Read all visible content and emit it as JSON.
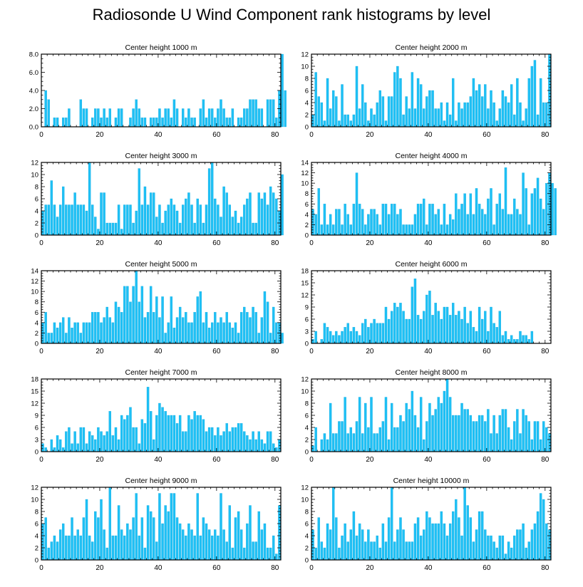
{
  "title": "Radiosonde U Wind Component rank histograms by level",
  "colors": {
    "bar": "#1ec0f5",
    "bar_edge": "#0aa7dd",
    "axis": "#000000"
  },
  "chart_data": [
    {
      "type": "bar",
      "title": "Center height 1000 m",
      "xlim": [
        0,
        82
      ],
      "xticks": [
        0,
        20,
        40,
        60,
        80
      ],
      "ylim": [
        0,
        8
      ],
      "yticks": [
        0,
        2,
        4,
        6,
        8
      ],
      "ytick_labels": [
        "0.0",
        "2.0",
        "4.0",
        "6.0",
        "8.0"
      ],
      "values": [
        0,
        4,
        3,
        0,
        1,
        1,
        0,
        1,
        1,
        2,
        0,
        0,
        0,
        3,
        2,
        2,
        0,
        1,
        2,
        2,
        1,
        2,
        1,
        2,
        0,
        1,
        2,
        2,
        0,
        0,
        1,
        2,
        3,
        2,
        1,
        1,
        0,
        1,
        1,
        1,
        2,
        1,
        2,
        2,
        1,
        3,
        2,
        0,
        2,
        1,
        2,
        1,
        1,
        0,
        2,
        3,
        1,
        2,
        2,
        1,
        2,
        3,
        2,
        1,
        1,
        2,
        0,
        1,
        1,
        2,
        2,
        3,
        3,
        3,
        2,
        2,
        0,
        3,
        3,
        3,
        1,
        4,
        8,
        4
      ]
    },
    {
      "type": "bar",
      "title": "Center height 2000 m",
      "xlim": [
        0,
        82
      ],
      "xticks": [
        0,
        20,
        40,
        60,
        80
      ],
      "ylim": [
        0,
        12
      ],
      "yticks": [
        0,
        2,
        4,
        6,
        8,
        10,
        12
      ],
      "ytick_labels": [
        "0",
        "2",
        "4",
        "6",
        "8",
        "10",
        "12"
      ],
      "values": [
        2,
        9,
        5,
        4,
        1,
        8,
        3,
        6,
        5,
        1,
        7,
        2,
        2,
        1,
        2,
        10,
        3,
        7,
        4,
        1,
        3,
        2,
        4,
        6,
        5,
        1,
        5,
        5,
        9,
        10,
        8,
        2,
        5,
        3,
        9,
        3,
        8,
        7,
        3,
        5,
        6,
        6,
        3,
        3,
        4,
        1,
        4,
        2,
        8,
        1,
        4,
        3,
        4,
        4,
        5,
        8,
        6,
        7,
        5,
        7,
        3,
        6,
        4,
        1,
        3,
        6,
        5,
        4,
        7,
        2,
        8,
        4,
        1,
        3,
        8,
        10,
        11,
        2,
        8,
        4,
        4,
        12
      ]
    },
    {
      "type": "bar",
      "title": "Center height 3000 m",
      "xlim": [
        0,
        82
      ],
      "xticks": [
        0,
        20,
        40,
        60,
        80
      ],
      "ylim": [
        0,
        12
      ],
      "yticks": [
        0,
        2,
        4,
        6,
        8,
        10,
        12
      ],
      "ytick_labels": [
        "0",
        "2",
        "4",
        "6",
        "8",
        "10",
        "12"
      ],
      "values": [
        4,
        5,
        5,
        9,
        5,
        3,
        5,
        8,
        5,
        5,
        5,
        7,
        5,
        5,
        5,
        4,
        12,
        5,
        3,
        1,
        7,
        7,
        2,
        2,
        2,
        2,
        5,
        1,
        5,
        5,
        5,
        2,
        4,
        11,
        5,
        8,
        5,
        7,
        7,
        3,
        5,
        2,
        4,
        5,
        6,
        5,
        4,
        2,
        5,
        6,
        7,
        5,
        2,
        6,
        5,
        2,
        5,
        11,
        12,
        6,
        5,
        3,
        8,
        7,
        5,
        3,
        4,
        2,
        3,
        5,
        6,
        7,
        2,
        2,
        7,
        6,
        7,
        5,
        8,
        7,
        6,
        4,
        10
      ]
    },
    {
      "type": "bar",
      "title": "Center height 4000 m",
      "xlim": [
        0,
        82
      ],
      "xticks": [
        0,
        20,
        40,
        60,
        80
      ],
      "ylim": [
        0,
        14
      ],
      "yticks": [
        0,
        2,
        4,
        6,
        8,
        10,
        12,
        14
      ],
      "ytick_labels": [
        "0",
        "2",
        "4",
        "6",
        "8",
        "10",
        "12",
        "14"
      ],
      "values": [
        5,
        4,
        9,
        2,
        6,
        2,
        4,
        2,
        5,
        5,
        2,
        6,
        4,
        2,
        6,
        12,
        6,
        5,
        2,
        4,
        5,
        5,
        4,
        2,
        6,
        6,
        4,
        6,
        6,
        4,
        5,
        2,
        2,
        2,
        2,
        4,
        6,
        6,
        7,
        2,
        6,
        6,
        4,
        5,
        2,
        6,
        2,
        4,
        3,
        8,
        5,
        6,
        8,
        4,
        8,
        4,
        9,
        6,
        5,
        4,
        7,
        9,
        2,
        6,
        8,
        5,
        13,
        4,
        4,
        7,
        5,
        4,
        12,
        9,
        2,
        8,
        9,
        11,
        7,
        5,
        10,
        12,
        10,
        9
      ]
    },
    {
      "type": "bar",
      "title": "Center height 5000 m",
      "xlim": [
        0,
        82
      ],
      "xticks": [
        0,
        20,
        40,
        60,
        80
      ],
      "ylim": [
        0,
        14
      ],
      "yticks": [
        0,
        2,
        4,
        6,
        8,
        10,
        12,
        14
      ],
      "ytick_labels": [
        "0",
        "2",
        "4",
        "6",
        "8",
        "10",
        "12",
        "14"
      ],
      "values": [
        4,
        6,
        2,
        2,
        4,
        3,
        4,
        5,
        2,
        5,
        3,
        4,
        4,
        2,
        4,
        4,
        4,
        6,
        6,
        6,
        4,
        5,
        7,
        5,
        4,
        8,
        7,
        6,
        11,
        11,
        8,
        11,
        14,
        8,
        11,
        5,
        6,
        11,
        6,
        9,
        5,
        9,
        2,
        4,
        9,
        3,
        5,
        7,
        5,
        6,
        4,
        4,
        6,
        9,
        10,
        4,
        6,
        3,
        4,
        6,
        4,
        5,
        4,
        6,
        4,
        3,
        4,
        2,
        6,
        7,
        6,
        5,
        7,
        6,
        2,
        5,
        10,
        8,
        2,
        7,
        4,
        4,
        2
      ]
    },
    {
      "type": "bar",
      "title": "Center height 6000 m",
      "xlim": [
        0,
        82
      ],
      "xticks": [
        0,
        20,
        40,
        60,
        80
      ],
      "ylim": [
        0,
        18
      ],
      "yticks": [
        0,
        3,
        6,
        9,
        12,
        15,
        18
      ],
      "ytick_labels": [
        "0",
        "3",
        "6",
        "9",
        "12",
        "15",
        "18"
      ],
      "values": [
        1,
        3,
        0,
        1,
        5,
        4,
        3,
        2,
        3,
        2,
        3,
        4,
        5,
        3,
        4,
        3,
        2,
        5,
        6,
        4,
        5,
        6,
        5,
        5,
        5,
        9,
        6,
        8,
        10,
        9,
        10,
        8,
        6,
        6,
        14,
        16,
        7,
        6,
        8,
        12,
        13,
        7,
        10,
        8,
        6,
        9,
        9,
        7,
        10,
        7,
        8,
        6,
        9,
        5,
        8,
        4,
        3,
        9,
        6,
        8,
        3,
        9,
        5,
        4,
        8,
        2,
        3,
        1,
        2,
        1,
        1,
        3,
        2,
        2,
        1,
        3
      ]
    },
    {
      "type": "bar",
      "title": "Center height 7000 m",
      "xlim": [
        0,
        82
      ],
      "xticks": [
        0,
        20,
        40,
        60,
        80
      ],
      "ylim": [
        0,
        18
      ],
      "yticks": [
        0,
        3,
        6,
        9,
        12,
        15,
        18
      ],
      "ytick_labels": [
        "0",
        "3",
        "6",
        "9",
        "12",
        "15",
        "18"
      ],
      "values": [
        2,
        1,
        0,
        3,
        1,
        4,
        3,
        1,
        5,
        6,
        2,
        5,
        2,
        6,
        6,
        2,
        5,
        4,
        3,
        6,
        5,
        4,
        5,
        10,
        4,
        6,
        3,
        9,
        8,
        9,
        11,
        6,
        6,
        2,
        8,
        7,
        16,
        10,
        3,
        9,
        12,
        11,
        10,
        9,
        9,
        9,
        7,
        9,
        5,
        5,
        9,
        8,
        10,
        9,
        9,
        8,
        5,
        6,
        6,
        4,
        6,
        4,
        5,
        7,
        5,
        6,
        6,
        7,
        7,
        5,
        4,
        3,
        5,
        3,
        5,
        3,
        2,
        5,
        5,
        2,
        1,
        3
      ]
    },
    {
      "type": "bar",
      "title": "Center height 8000 m",
      "xlim": [
        0,
        82
      ],
      "xticks": [
        0,
        20,
        40,
        60,
        80
      ],
      "ylim": [
        0,
        12
      ],
      "yticks": [
        0,
        2,
        4,
        6,
        8,
        10,
        12
      ],
      "ytick_labels": [
        "0",
        "2",
        "4",
        "6",
        "8",
        "10",
        "12"
      ],
      "values": [
        1,
        4,
        0,
        2,
        3,
        2,
        8,
        3,
        3,
        5,
        5,
        9,
        3,
        4,
        3,
        5,
        9,
        3,
        8,
        4,
        9,
        3,
        3,
        4,
        5,
        9,
        2,
        8,
        4,
        4,
        6,
        5,
        8,
        7,
        10,
        6,
        4,
        9,
        2,
        5,
        8,
        6,
        7,
        9,
        8,
        10,
        12,
        9,
        6,
        6,
        6,
        8,
        7,
        7,
        6,
        5,
        5,
        6,
        6,
        5,
        7,
        3,
        6,
        3,
        6,
        7,
        7,
        4,
        2,
        5,
        7,
        3,
        7,
        6,
        5,
        2,
        5,
        5,
        2,
        5,
        4,
        3
      ]
    },
    {
      "type": "bar",
      "title": "Center height 9000 m",
      "xlim": [
        0,
        82
      ],
      "xticks": [
        0,
        20,
        40,
        60,
        80
      ],
      "ylim": [
        0,
        12
      ],
      "yticks": [
        0,
        2,
        4,
        6,
        8,
        10,
        12
      ],
      "ytick_labels": [
        "0",
        "2",
        "4",
        "6",
        "8",
        "10",
        "12"
      ],
      "values": [
        6,
        7,
        2,
        3,
        4,
        3,
        5,
        6,
        4,
        4,
        7,
        4,
        5,
        4,
        7,
        10,
        4,
        3,
        8,
        7,
        10,
        5,
        2,
        12,
        4,
        4,
        9,
        5,
        4,
        6,
        5,
        7,
        11,
        4,
        7,
        2,
        9,
        8,
        7,
        3,
        11,
        6,
        9,
        8,
        11,
        11,
        7,
        6,
        5,
        4,
        6,
        5,
        4,
        11,
        4,
        7,
        6,
        5,
        4,
        5,
        4,
        11,
        5,
        3,
        9,
        2,
        7,
        8,
        5,
        2,
        6,
        9,
        3,
        3,
        8,
        5,
        6,
        2,
        2,
        4,
        1,
        9
      ]
    },
    {
      "type": "bar",
      "title": "Center height 10000 m",
      "xlim": [
        0,
        82
      ],
      "xticks": [
        0,
        20,
        40,
        60,
        80
      ],
      "ylim": [
        0,
        12
      ],
      "yticks": [
        0,
        2,
        4,
        6,
        8,
        10,
        12
      ],
      "ytick_labels": [
        "0",
        "2",
        "4",
        "6",
        "8",
        "10",
        "12"
      ],
      "values": [
        5,
        2,
        7,
        3,
        2,
        6,
        5,
        12,
        7,
        2,
        4,
        6,
        3,
        5,
        8,
        4,
        6,
        5,
        3,
        5,
        3,
        3,
        4,
        2,
        6,
        3,
        7,
        12,
        3,
        5,
        7,
        5,
        3,
        3,
        3,
        6,
        7,
        4,
        5,
        8,
        7,
        6,
        6,
        6,
        8,
        6,
        4,
        6,
        8,
        10,
        7,
        4,
        12,
        9,
        7,
        3,
        5,
        8,
        8,
        5,
        4,
        4,
        3,
        2,
        4,
        4,
        1,
        3,
        2,
        4,
        5,
        5,
        6,
        2,
        3,
        5,
        6,
        8,
        11,
        10,
        6,
        5
      ]
    }
  ]
}
